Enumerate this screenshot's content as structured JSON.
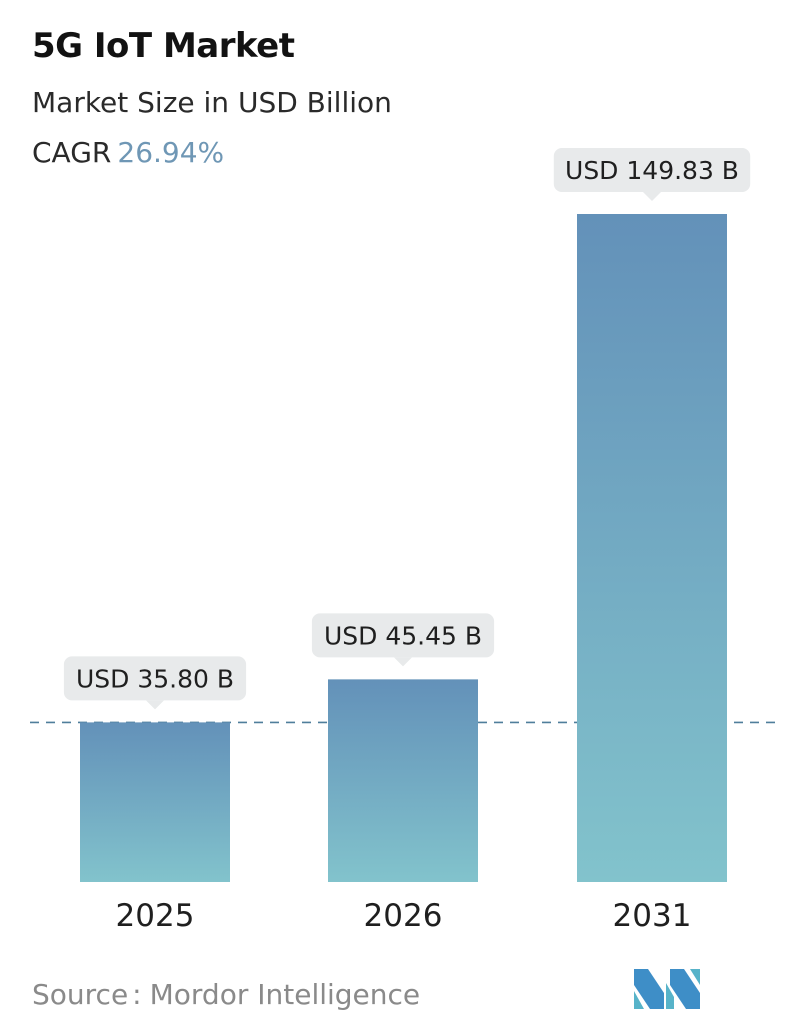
{
  "header": {
    "title": "5G IoT Market",
    "subtitle": "Market Size in USD Billion",
    "cagr_label": "CAGR",
    "cagr_value": "26.94%"
  },
  "chart_data": {
    "type": "bar",
    "title": "5G IoT Market",
    "subtitle": "Market Size in USD Billion",
    "categories": [
      "2025",
      "2026",
      "2031"
    ],
    "values": [
      35.8,
      45.45,
      149.83
    ],
    "value_labels": [
      "USD 35.80 B",
      "USD 45.45 B",
      "USD 149.83 B"
    ],
    "unit": "USD Billion",
    "reference_line": 35.8,
    "grid": false,
    "legend": "none",
    "colors": {
      "bar_top": "#6391b9",
      "bar_bottom": "#82c3cc",
      "label_bg": "#e8eaeb",
      "reference_line": "#4f7e9b"
    }
  },
  "footer": {
    "source_label": "Source",
    "source_sep": ":",
    "source_value": "Mordor Intelligence",
    "logo_icon": "mordor-intelligence-logo"
  },
  "colors": {
    "cagr_accent": "#6f97b5",
    "text": "#1f1f1f",
    "muted": "#8a8a8a"
  }
}
